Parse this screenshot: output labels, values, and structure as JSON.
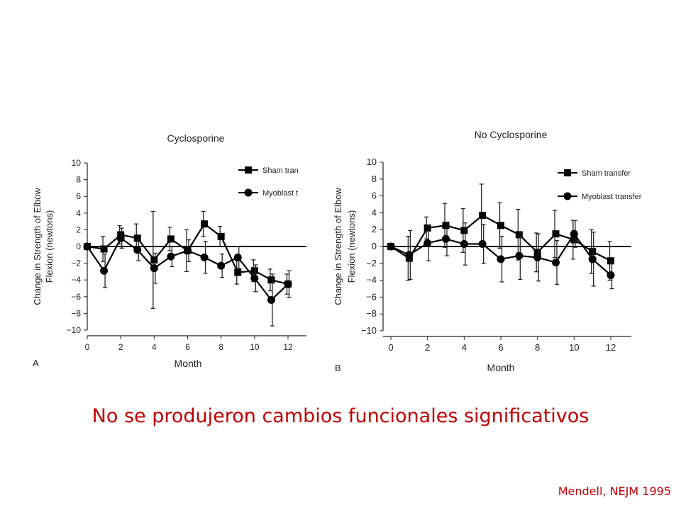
{
  "slide": {
    "caption": "No se produjeron cambios funcionales significativos",
    "credit": "Mendell, NEJM 1995",
    "accent_color": "#c00000"
  },
  "chart_data": [
    {
      "type": "line",
      "panel_label": "A",
      "title": "Cyclosporine",
      "xlabel": "Month",
      "ylabel": [
        "Change in Strength of Elbow",
        "Flexion (newtons)"
      ],
      "xlim": [
        0,
        13
      ],
      "ylim": [
        -10,
        10
      ],
      "xticks": [
        0,
        2,
        4,
        6,
        8,
        10,
        12
      ],
      "yticks": [
        10,
        8,
        6,
        4,
        2,
        0,
        -2,
        -4,
        -6,
        -8,
        -10
      ],
      "ytick_labels": [
        "10",
        "8",
        "6",
        "4",
        "2",
        "0",
        "−2",
        "−4",
        "−6",
        "−8",
        "−10"
      ],
      "grid": false,
      "legend": "top-right",
      "series": [
        {
          "name": "Sham tran",
          "marker": "square",
          "x": [
            0,
            1,
            2,
            3,
            4,
            5,
            6,
            7,
            8,
            9,
            10,
            11,
            12
          ],
          "y": [
            0,
            -0.3,
            1.4,
            1.0,
            -1.6,
            0.9,
            -0.5,
            2.7,
            1.2,
            -3.1,
            -2.9,
            -4.0,
            -4.5
          ],
          "err": [
            0,
            1.5,
            1.1,
            1.7,
            5.8,
            1.4,
            2.5,
            1.5,
            1.2,
            1.4,
            1.3,
            1.3,
            1.2
          ]
        },
        {
          "name": "Myoblast t",
          "marker": "circle",
          "x": [
            0,
            1,
            2,
            3,
            4,
            5,
            6,
            7,
            8,
            9,
            10,
            11,
            12
          ],
          "y": [
            0,
            -2.9,
            1.0,
            -0.4,
            -2.6,
            -1.2,
            -0.5,
            -1.3,
            -2.3,
            -1.3,
            -3.8,
            -6.4,
            -4.5
          ],
          "err": [
            0,
            2.0,
            1.2,
            1.3,
            1.8,
            1.2,
            1.3,
            1.9,
            1.4,
            1.3,
            1.6,
            3.1,
            1.6
          ]
        }
      ]
    },
    {
      "type": "line",
      "panel_label": "B",
      "title": "No Cyclosporine",
      "xlabel": "Month",
      "ylabel": [
        "Change in Strength of Elbow",
        "Flexion (newtons)"
      ],
      "xlim": [
        0,
        13
      ],
      "ylim": [
        -10,
        10
      ],
      "xticks": [
        0,
        2,
        4,
        6,
        8,
        10,
        12
      ],
      "yticks": [
        10,
        8,
        6,
        4,
        2,
        0,
        -2,
        -4,
        -6,
        -8,
        -10
      ],
      "ytick_labels": [
        "10",
        "8",
        "6",
        "4",
        "2",
        "0",
        "−2",
        "−4",
        "−6",
        "−8",
        "−10"
      ],
      "grid": false,
      "legend": "top-right",
      "series": [
        {
          "name": "Sham transfer",
          "marker": "square",
          "x": [
            0,
            1,
            2,
            3,
            4,
            5,
            6,
            7,
            8,
            9,
            10,
            11,
            12
          ],
          "y": [
            0,
            -1.4,
            2.2,
            2.5,
            1.9,
            3.7,
            2.5,
            1.4,
            -0.7,
            1.5,
            0.8,
            -0.6,
            -1.7
          ],
          "err": [
            0,
            2.6,
            1.3,
            2.6,
            2.6,
            3.7,
            2.7,
            3.0,
            2.3,
            2.8,
            2.3,
            2.6,
            2.3
          ]
        },
        {
          "name": "Myoblast transfer",
          "marker": "circle",
          "x": [
            0,
            1,
            2,
            3,
            4,
            5,
            6,
            7,
            8,
            9,
            10,
            11,
            12
          ],
          "y": [
            0,
            -1.0,
            0.4,
            0.9,
            0.3,
            0.3,
            -1.5,
            -1.1,
            -1.3,
            -1.9,
            1.5,
            -1.5,
            -3.4
          ],
          "err": [
            0,
            2.9,
            2.1,
            2.0,
            2.5,
            2.3,
            2.7,
            2.8,
            2.8,
            2.6,
            1.6,
            3.2,
            1.6
          ]
        }
      ]
    }
  ]
}
